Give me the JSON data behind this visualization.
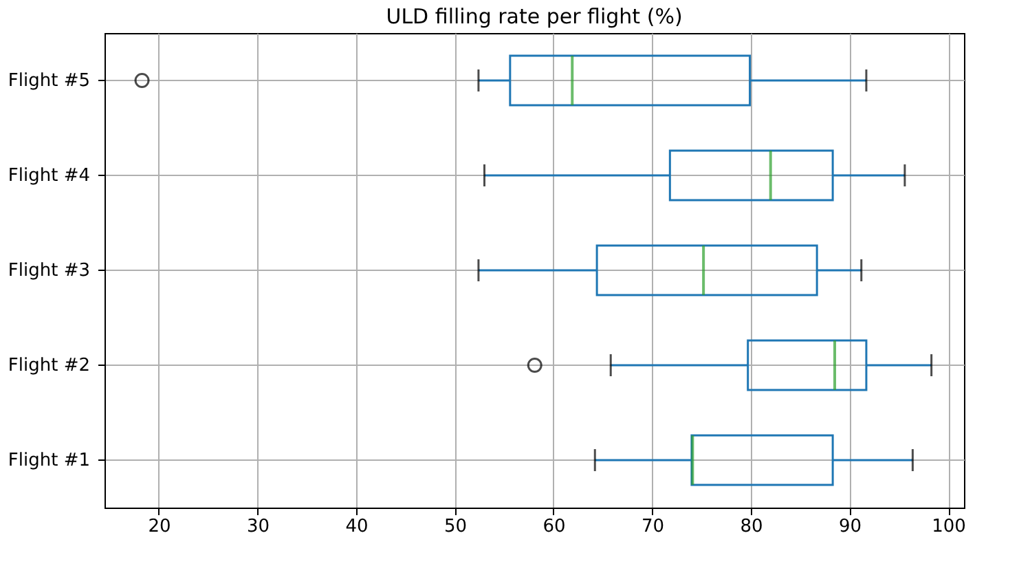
{
  "chart_data": {
    "type": "box",
    "orientation": "horizontal",
    "title": "ULD filling rate per flight (%)",
    "categories": [
      "Flight #5",
      "Flight #4",
      "Flight #3",
      "Flight #2",
      "Flight #1"
    ],
    "series": [
      {
        "boxes": [
          {
            "low": 52.4,
            "q1": 55.6,
            "median": 61.9,
            "q3": 79.9,
            "high": 91.7,
            "outliers": [
              18.3
            ]
          },
          {
            "low": 53.0,
            "q1": 71.8,
            "median": 82.0,
            "q3": 88.3,
            "high": 95.6
          },
          {
            "low": 52.4,
            "q1": 64.4,
            "median": 75.2,
            "q3": 86.7,
            "high": 91.2
          },
          {
            "low": 65.8,
            "q1": 79.7,
            "median": 88.5,
            "q3": 91.7,
            "high": 98.3,
            "outliers": [
              58.1
            ]
          },
          {
            "low": 64.2,
            "q1": 74.0,
            "median": 74.1,
            "q3": 88.3,
            "high": 96.4
          }
        ]
      }
    ],
    "xlim": [
      14.5,
      101.6
    ],
    "xticks": [
      20,
      30,
      40,
      50,
      60,
      70,
      80,
      90,
      100
    ],
    "grid": true
  }
}
